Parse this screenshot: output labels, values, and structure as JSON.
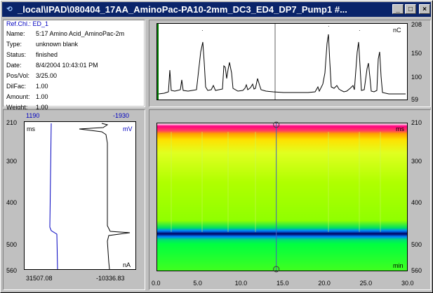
{
  "window": {
    "title": "_local\\IPAD\\080404_17AA_AminoPac-PA10-2mm_DC3_ED4_DP7_Pump1 #...",
    "icon": "chromeleon-app-icon",
    "buttons": {
      "minimize": "_",
      "maximize": "□",
      "close": "×"
    }
  },
  "info": {
    "ref_channel": "Ref.Chl.: ED_1",
    "fields": [
      {
        "key": "Name:",
        "value": "5:17 Amino Acid_AminoPac-2m"
      },
      {
        "key": "Type:",
        "value": "unknown blank"
      },
      {
        "key": "Status:",
        "value": "finished"
      },
      {
        "key": "Date:",
        "value": "8/4/2004 10:43:01 PM"
      },
      {
        "key": "Pos/Vol:",
        "value": "3/25.00"
      },
      {
        "key": "DilFac:",
        "value": "1.00"
      },
      {
        "key": "Amount:",
        "value": "1.00"
      },
      {
        "key": "Weight:",
        "value": "1.00"
      }
    ]
  },
  "chromatogram": {
    "unit": "nC",
    "y_ticks": [
      "208",
      "150",
      "100",
      "59"
    ]
  },
  "profile": {
    "top_left": "1190",
    "top_right": "-1930",
    "unit_left": "ms",
    "unit_right": "mV",
    "unit_bottom": "nA",
    "bottom_left": "31507.08",
    "bottom_right": "-10336.83",
    "y_ticks": [
      "210",
      "300",
      "400",
      "500",
      "560"
    ]
  },
  "map": {
    "unit_top": "ms",
    "unit_bottom": "min",
    "y_ticks": [
      "210",
      "300",
      "400",
      "500",
      "560"
    ],
    "x_ticks": [
      "0.0",
      "5.0",
      "10.0",
      "15.0",
      "20.0",
      "25.0",
      "30.0"
    ],
    "cursor_time": 14.3
  },
  "colors": {
    "title_bar": "#0a246a",
    "profile_blue": "#0000c0",
    "map_green": "#80ff00"
  }
}
